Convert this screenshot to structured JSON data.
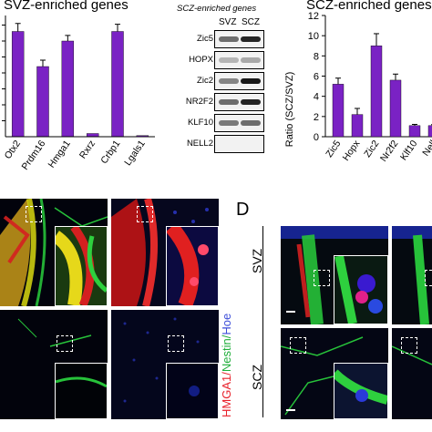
{
  "left_chart": {
    "title": "SVZ-enriched genes",
    "categories": [
      "Otx2",
      "Prdm16",
      "Hmga1",
      "Rxrz",
      "Crbp1",
      "Lgals1"
    ]
  },
  "blot": {
    "title": "SCZ-enriched genes",
    "columns": [
      "SVZ",
      "SCZ"
    ],
    "rows": [
      "Zic5",
      "HOPX",
      "Zic2",
      "NR2F2",
      "KLF10",
      "NELL2"
    ]
  },
  "right_chart": {
    "title": "SCZ-enriched genes",
    "ylabel": "Ratio (SCZ/SVZ)",
    "yticks": [
      "0",
      "2",
      "4",
      "6",
      "8",
      "10",
      "12"
    ],
    "categories": [
      "Zic5",
      "Hopx",
      "Zic2",
      "Nr2f2",
      "Klf10",
      "Nell"
    ]
  },
  "panel_d": {
    "letter": "D",
    "row_labels": [
      "SVZ",
      "SCZ"
    ],
    "stain_label": [
      {
        "text": "HMGA1",
        "color": "#e8202a"
      },
      {
        "text": "/",
        "color": "#e8202a"
      },
      {
        "text": "Nestin",
        "color": "#1fae3a"
      },
      {
        "text": "/",
        "color": "#1fae3a"
      },
      {
        "text": "Hoe",
        "color": "#3a4bd8"
      }
    ]
  },
  "colors": {
    "bar": "#7a22c4",
    "red": "#e8202a",
    "green": "#1fae3a",
    "blue": "#3a4bd8"
  },
  "chart_data": [
    {
      "type": "bar",
      "title": "SVZ-enriched genes",
      "categories": [
        "Otx2",
        "Prdm16",
        "Hmga1",
        "Rxrz",
        "Crbp1",
        "Lgals1"
      ],
      "values": [
        6.6,
        4.4,
        6.0,
        0.2,
        6.6,
        0.07
      ],
      "errors": [
        0.5,
        0.4,
        0.35,
        0,
        0.45,
        0
      ],
      "ylim": [
        0,
        7.6
      ],
      "ylabel": "",
      "xlabel": ""
    },
    {
      "type": "bar",
      "title": "SCZ-enriched genes",
      "categories": [
        "Zic5",
        "Hopx",
        "Zic2",
        "Nr2f2",
        "Klf10",
        "Nell"
      ],
      "values": [
        5.2,
        2.2,
        9.0,
        5.6,
        1.1,
        1.1
      ],
      "errors": [
        0.6,
        0.6,
        1.2,
        0.6,
        0.12,
        0.1
      ],
      "ylim": [
        0,
        12
      ],
      "ylabel": "Ratio (SCZ/SVZ)",
      "xlabel": ""
    }
  ]
}
